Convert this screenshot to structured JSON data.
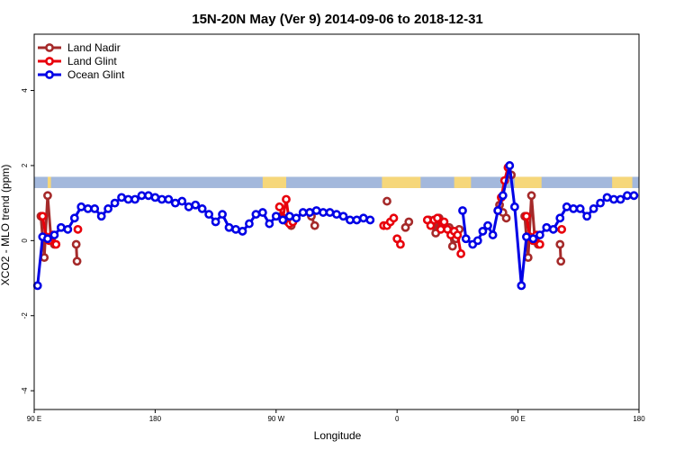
{
  "chart_data": {
    "type": "line",
    "title": "15N-20N May (Ver 9)   2014-09-06 to 2018-12-31",
    "xlabel": "Longitude",
    "ylabel": "XCO2 - MLO trend (ppm)",
    "xlim": [
      90,
      450
    ],
    "ylim": [
      -4.5,
      5.5
    ],
    "x_ticks": [
      {
        "value": 90,
        "label": "90 E"
      },
      {
        "value": 162,
        "label": "180"
      },
      {
        "value": 234,
        "label": "90 W"
      },
      {
        "value": 306,
        "label": "0"
      },
      {
        "value": 378,
        "label": "90 E"
      },
      {
        "value": 450,
        "label": "180"
      }
    ],
    "y_ticks": [
      {
        "value": -4,
        "label": "-4"
      },
      {
        "value": -2,
        "label": "-2"
      },
      {
        "value": 0,
        "label": "0"
      },
      {
        "value": 2,
        "label": "2"
      },
      {
        "value": 4,
        "label": "4"
      }
    ],
    "legend_position": "top-left",
    "grid": false,
    "land_strip": {
      "y_range": [
        1.4,
        1.7
      ],
      "ocean_color": "#a3b8dc",
      "land_color": "#f6d77a",
      "land_segments": [
        [
          98,
          100
        ],
        [
          226,
          240
        ],
        [
          297,
          320
        ],
        [
          340,
          350
        ],
        [
          376,
          392
        ],
        [
          434,
          446
        ]
      ]
    },
    "series": [
      {
        "name": "Land Nadir",
        "color": "#a52a2a",
        "segments": [
          [
            [
              94,
              0.65
            ],
            [
              96,
              -0.45
            ],
            [
              98,
              1.2
            ],
            [
              100,
              0.05
            ],
            [
              102,
              -0.1
            ]
          ],
          [
            [
              115,
              -0.1
            ],
            [
              115.5,
              -0.55
            ]
          ],
          [
            [
              237,
              0.65
            ],
            [
              239,
              0.55
            ],
            [
              241,
              0.5
            ],
            [
              243,
              0.4
            ]
          ],
          [
            [
              255,
              0.65
            ],
            [
              257,
              0.4
            ]
          ],
          [
            [
              300,
              1.05
            ]
          ],
          [
            [
              311,
              0.35
            ],
            [
              313,
              0.5
            ]
          ],
          [
            [
              325,
              0.55
            ],
            [
              327,
              0.4
            ],
            [
              329,
              0.2
            ],
            [
              331,
              0.6
            ],
            [
              333,
              0.45
            ],
            [
              337,
              0.35
            ],
            [
              339,
              -0.15
            ],
            [
              341,
              0.05
            ],
            [
              343,
              0.3
            ]
          ],
          [
            [
              367,
              0.95
            ],
            [
              369,
              0.75
            ],
            [
              371,
              0.6
            ]
          ],
          [
            [
              374,
              1.75
            ]
          ],
          [
            [
              382,
              0.65
            ],
            [
              384,
              -0.45
            ],
            [
              386,
              1.2
            ],
            [
              388,
              0.05
            ],
            [
              390,
              -0.1
            ]
          ],
          [
            [
              403,
              -0.1
            ],
            [
              403.5,
              -0.55
            ]
          ]
        ]
      },
      {
        "name": "Land Glint",
        "color": "#e8000b",
        "segments": [
          [
            [
              95,
              0.65
            ],
            [
              97,
              0.1
            ],
            [
              99,
              0.0
            ],
            [
              101,
              0.15
            ],
            [
              103,
              -0.1
            ]
          ],
          [
            [
              116,
              0.3
            ]
          ],
          [
            [
              236,
              0.9
            ],
            [
              238,
              0.6
            ],
            [
              240,
              1.1
            ],
            [
              242,
              0.45
            ],
            [
              244,
              0.5
            ]
          ],
          [
            [
              254,
              0.75
            ]
          ],
          [
            [
              298,
              0.4
            ],
            [
              300,
              0.4
            ],
            [
              302,
              0.5
            ],
            [
              304,
              0.6
            ]
          ],
          [
            [
              306,
              0.05
            ],
            [
              308,
              -0.1
            ]
          ],
          [
            [
              324,
              0.55
            ],
            [
              326,
              0.4
            ],
            [
              328,
              0.55
            ],
            [
              330,
              0.6
            ],
            [
              332,
              0.3
            ],
            [
              334,
              0.5
            ],
            [
              336,
              0.3
            ],
            [
              338,
              0.15
            ],
            [
              340,
              0.25
            ],
            [
              342,
              0.15
            ],
            [
              344,
              -0.35
            ]
          ],
          [
            [
              366,
              0.8
            ],
            [
              368,
              1.15
            ],
            [
              370,
              1.6
            ],
            [
              372,
              1.95
            ]
          ],
          [
            [
              383,
              0.65
            ],
            [
              385,
              0.1
            ],
            [
              387,
              0.0
            ],
            [
              389,
              0.15
            ],
            [
              391,
              -0.1
            ]
          ],
          [
            [
              404,
              0.3
            ]
          ]
        ]
      },
      {
        "name": "Ocean Glint",
        "color": "#0000e6",
        "segments": [
          [
            [
              92,
              -1.2
            ],
            [
              95,
              0.1
            ],
            [
              98,
              0.05
            ],
            [
              102,
              0.15
            ],
            [
              106,
              0.35
            ],
            [
              110,
              0.3
            ],
            [
              114,
              0.6
            ],
            [
              118,
              0.9
            ],
            [
              122,
              0.85
            ],
            [
              126,
              0.85
            ],
            [
              130,
              0.65
            ],
            [
              134,
              0.85
            ],
            [
              138,
              1.0
            ],
            [
              142,
              1.15
            ],
            [
              146,
              1.1
            ],
            [
              150,
              1.1
            ],
            [
              154,
              1.2
            ],
            [
              158,
              1.2
            ],
            [
              162,
              1.15
            ],
            [
              166,
              1.1
            ],
            [
              170,
              1.1
            ],
            [
              174,
              1.0
            ],
            [
              178,
              1.05
            ],
            [
              182,
              0.9
            ],
            [
              186,
              0.95
            ],
            [
              190,
              0.85
            ],
            [
              194,
              0.7
            ],
            [
              198,
              0.5
            ],
            [
              202,
              0.7
            ],
            [
              206,
              0.35
            ],
            [
              210,
              0.3
            ],
            [
              214,
              0.25
            ],
            [
              218,
              0.45
            ],
            [
              222,
              0.7
            ],
            [
              226,
              0.75
            ],
            [
              230,
              0.45
            ],
            [
              234,
              0.65
            ],
            [
              238,
              0.55
            ],
            [
              242,
              0.65
            ],
            [
              246,
              0.6
            ],
            [
              250,
              0.75
            ],
            [
              254,
              0.75
            ],
            [
              258,
              0.8
            ],
            [
              262,
              0.75
            ],
            [
              266,
              0.75
            ],
            [
              270,
              0.7
            ],
            [
              274,
              0.65
            ],
            [
              278,
              0.55
            ],
            [
              282,
              0.55
            ],
            [
              286,
              0.6
            ],
            [
              290,
              0.55
            ]
          ],
          [
            [
              345,
              0.8
            ],
            [
              347,
              0.05
            ],
            [
              351,
              -0.1
            ],
            [
              354,
              0.0
            ],
            [
              357,
              0.25
            ],
            [
              360,
              0.4
            ],
            [
              363,
              0.15
            ],
            [
              366,
              0.8
            ],
            [
              369,
              1.2
            ],
            [
              373,
              2.0
            ],
            [
              376,
              0.9
            ],
            [
              380,
              -1.2
            ],
            [
              383,
              0.1
            ],
            [
              387,
              0.05
            ],
            [
              391,
              0.15
            ],
            [
              395,
              0.35
            ],
            [
              399,
              0.3
            ],
            [
              403,
              0.6
            ],
            [
              407,
              0.9
            ],
            [
              411,
              0.85
            ],
            [
              415,
              0.85
            ],
            [
              419,
              0.65
            ],
            [
              423,
              0.85
            ],
            [
              427,
              1.0
            ],
            [
              431,
              1.15
            ],
            [
              435,
              1.1
            ],
            [
              439,
              1.1
            ],
            [
              443,
              1.2
            ],
            [
              447,
              1.2
            ]
          ]
        ]
      }
    ]
  }
}
